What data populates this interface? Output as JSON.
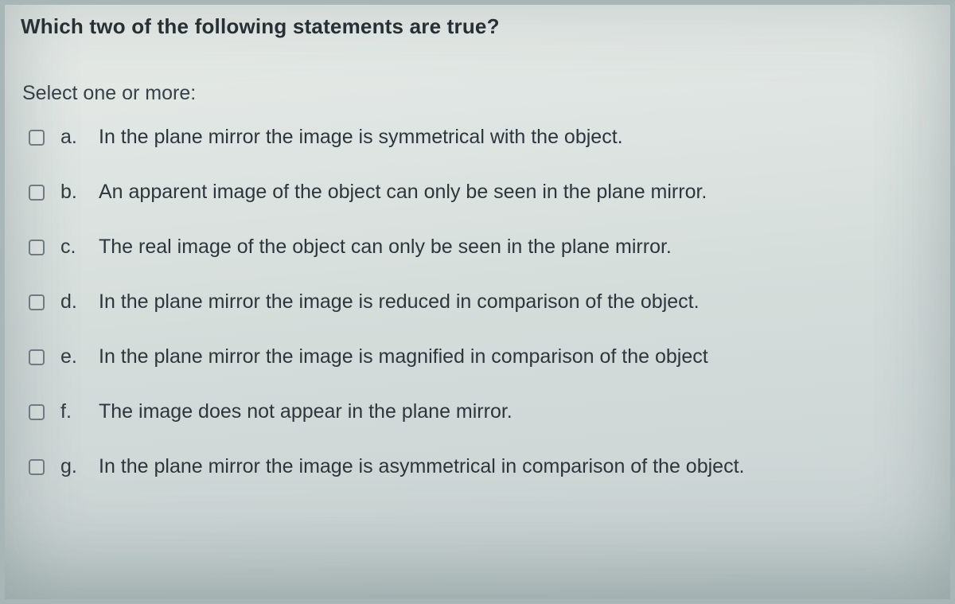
{
  "question": "Which two of the following statements are true?",
  "instruction": "Select one or more:",
  "options": [
    {
      "letter": "a.",
      "text": "In the plane mirror the image is symmetrical with the object."
    },
    {
      "letter": "b.",
      "text": "An apparent image of the object can only be seen in the plane mirror."
    },
    {
      "letter": "c.",
      "text": "The real image of the object can only be seen in the plane mirror."
    },
    {
      "letter": "d.",
      "text": "In the plane mirror the image is reduced in comparison of the object."
    },
    {
      "letter": "e.",
      "text": "In the plane mirror the image is magnified in comparison of the object"
    },
    {
      "letter": "f.",
      "text": "The image does not appear in the plane mirror."
    },
    {
      "letter": "g.",
      "text": "In the plane mirror the image is asymmetrical in comparison of the object."
    }
  ],
  "colors": {
    "text": "#2a3238",
    "checkbox_border": "#6f7a82",
    "bg_top": "#e8ece9",
    "bg_bottom": "#c8d2d2"
  }
}
